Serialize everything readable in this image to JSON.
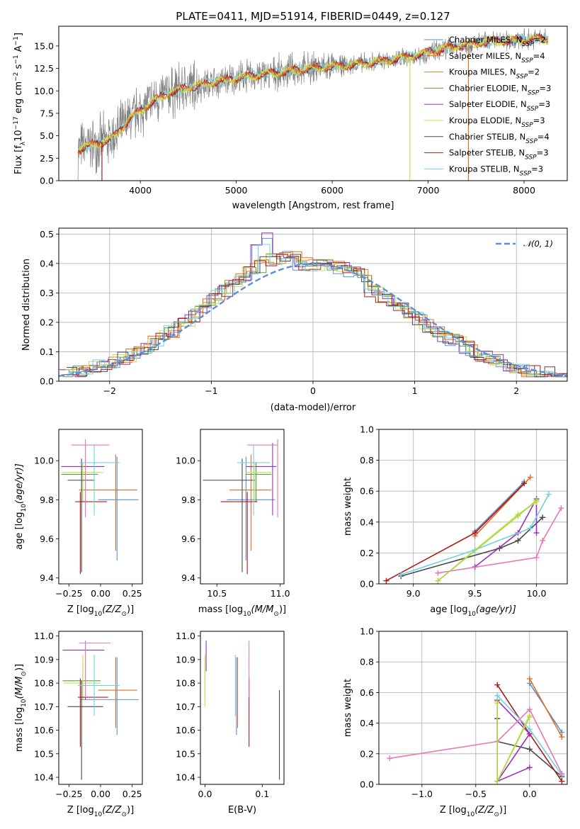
{
  "colors": {
    "Chabrier MILES": "#5b8fd9",
    "Salpeter MILES": "#e07020",
    "Kroupa MILES": "#d08820",
    "Chabrier ELODIE": "#5a9a40",
    "Salpeter ELODIE": "#9a30b8",
    "Kroupa ELODIE": "#c8e050",
    "Chabrier STELIB": "#484848",
    "Salpeter STELIB": "#b01818",
    "Kroupa STELIB": "#70d0e0",
    "data": "#808080",
    "gauss": "#5b8fd9",
    "pink": "#e878b8",
    "green2": "#a8d840",
    "orange2": "#e88020"
  },
  "chart_data": [
    {
      "id": "spectrum",
      "type": "line",
      "title": "PLATE=0411, MJD=51914, FIBERID=0449, z=0.127",
      "xlabel": "wavelength [Angstrom, rest frame]",
      "ylabel_main": "Flux [f",
      "ylabel_sub": "λ",
      "ylabel_rest": "10",
      "ylabel_exp": "−17",
      "ylabel_tail": " erg cm",
      "ylabel_tail_exp": "−2",
      "ylabel_tail2": " s",
      "ylabel_tail2_exp": "−1",
      "ylabel_tail3": " A",
      "ylabel_tail3_exp": "−1",
      "ylabel_end": "]",
      "xlim": [
        3150,
        8450
      ],
      "ylim": [
        0,
        17.2
      ],
      "xticks": [
        "4000",
        "5000",
        "6000",
        "7000",
        "8000"
      ],
      "yticks": [
        "0.0",
        "2.5",
        "5.0",
        "7.5",
        "10.0",
        "12.5",
        "15.0"
      ],
      "trend_x": [
        3350,
        3500,
        3700,
        3900,
        4100,
        4300,
        4500,
        4800,
        5100,
        5400,
        5700,
        6000,
        6300,
        6600,
        6900,
        7200,
        7500,
        7800,
        8100
      ],
      "trend_y": [
        3.5,
        4.0,
        4.6,
        7.0,
        8.6,
        9.8,
        10.4,
        11.0,
        11.6,
        12.0,
        12.4,
        12.7,
        13.0,
        13.4,
        14.0,
        14.8,
        15.3,
        15.6,
        15.8
      ],
      "legend": [
        {
          "label": "Chabrier MILES, N",
          "sub": "SSP",
          "suffix": "=2",
          "key": "Chabrier MILES"
        },
        {
          "label": "Salpeter MILES, N",
          "sub": "SSP",
          "suffix": "=4",
          "key": "Salpeter MILES"
        },
        {
          "label": "Kroupa MILES, N",
          "sub": "SSP",
          "suffix": "=2",
          "key": "Kroupa MILES"
        },
        {
          "label": "Chabrier ELODIE, N",
          "sub": "SSP",
          "suffix": "=3",
          "key": "Chabrier ELODIE"
        },
        {
          "label": "Salpeter ELODIE, N",
          "sub": "SSP",
          "suffix": "=3",
          "key": "Salpeter ELODIE"
        },
        {
          "label": "Kroupa ELODIE, N",
          "sub": "SSP",
          "suffix": "=3",
          "key": "Kroupa ELODIE"
        },
        {
          "label": "Chabrier STELIB, N",
          "sub": "SSP",
          "suffix": "=4",
          "key": "Chabrier STELIB"
        },
        {
          "label": "Salpeter STELIB, N",
          "sub": "SSP",
          "suffix": "=3",
          "key": "Salpeter STELIB"
        },
        {
          "label": "Kroupa STELIB, N",
          "sub": "SSP",
          "suffix": "=3",
          "key": "Kroupa STELIB"
        }
      ]
    },
    {
      "id": "residuals",
      "type": "histogram",
      "xlabel": "(data-model)/error",
      "ylabel": "Normed distribution",
      "xlim": [
        -2.5,
        2.5
      ],
      "ylim": [
        0,
        0.52
      ],
      "xticks": [
        "−2",
        "−1",
        "0",
        "1",
        "2"
      ],
      "yticks": [
        "0.0",
        "0.1",
        "0.2",
        "0.3",
        "0.4",
        "0.5"
      ],
      "grid": true,
      "legend_label": "𝒩(0, 1)",
      "legend_position": "top-right"
    },
    {
      "id": "age-vs-Z",
      "type": "errorbar",
      "xlabel": "Z [log",
      "xlabel_sub": "10",
      "xlabel_tail": "(Z/Z",
      "xlabel_tail_sub": "⊙",
      "xlabel_end": ")]",
      "ylabel": "age  [log",
      "ylabel_sub": "10",
      "ylabel_tail": "(age/yr)]",
      "xlim": [
        -0.33,
        0.33
      ],
      "ylim": [
        9.37,
        10.16
      ],
      "xticks": [
        "−0.25",
        "0.00",
        "0.25"
      ],
      "yticks": [
        "9.4",
        "9.6",
        "9.8",
        "10.0"
      ],
      "points": [
        {
          "c": "Chabrier MILES",
          "x": 0.13,
          "y": 9.8,
          "xe": [
            -0.02,
            0.3
          ],
          "ye": [
            9.49,
            10.02
          ]
        },
        {
          "c": "Salpeter MILES",
          "x": 0.12,
          "y": 9.85,
          "xe": [
            -0.17,
            0.29
          ],
          "ye": [
            9.54,
            10.03
          ]
        },
        {
          "c": "Chabrier ELODIE",
          "x": -0.14,
          "y": 9.93,
          "xe": [
            -0.31,
            -0.02
          ],
          "ye": [
            9.79,
            9.99
          ]
        },
        {
          "c": "Salpeter ELODIE",
          "x": -0.12,
          "y": 9.97,
          "xe": [
            -0.31,
            0.03
          ],
          "ye": [
            9.72,
            10.09
          ]
        },
        {
          "c": "Kroupa ELODIE",
          "x": -0.14,
          "y": 9.94,
          "xe": [
            -0.3,
            0.02
          ],
          "ye": [
            9.79,
            9.99
          ]
        },
        {
          "c": "Chabrier STELIB",
          "x": -0.15,
          "y": 9.9,
          "xe": [
            -0.26,
            -0.05
          ],
          "ye": [
            9.43,
            10.01
          ]
        },
        {
          "c": "Salpeter STELIB",
          "x": -0.16,
          "y": 9.79,
          "xe": [
            -0.2,
            0.05
          ],
          "ye": [
            9.42,
            9.84
          ]
        },
        {
          "c": "Kroupa STELIB",
          "x": -0.05,
          "y": 9.99,
          "xe": [
            -0.17,
            0.15
          ],
          "ye": [
            9.72,
            10.08
          ]
        },
        {
          "c": "pink",
          "x": -0.12,
          "y": 10.08,
          "xe": [
            -0.23,
            0.07
          ],
          "ye": [
            9.71,
            10.11
          ]
        }
      ]
    },
    {
      "id": "age-vs-mass",
      "type": "errorbar",
      "xlabel": "mass [log",
      "xlabel_sub": "10",
      "xlabel_tail": "(M/M",
      "xlabel_tail_sub": "⊙",
      "xlabel_end": ")]",
      "xlim": [
        10.37,
        11.03
      ],
      "ylim": [
        9.37,
        10.16
      ],
      "xticks": [
        "10.5",
        "11.0"
      ],
      "yticks": [
        "9.4",
        "9.6",
        "9.8",
        "10.0"
      ],
      "points": [
        {
          "c": "Chabrier MILES",
          "x": 10.73,
          "y": 9.8,
          "xe": [
            10.58,
            10.96
          ],
          "ye": [
            9.49,
            10.02
          ]
        },
        {
          "c": "Salpeter MILES",
          "x": 10.77,
          "y": 9.85,
          "xe": [
            10.6,
            10.93
          ],
          "ye": [
            9.54,
            10.03
          ]
        },
        {
          "c": "Chabrier ELODIE",
          "x": 10.81,
          "y": 9.93,
          "xe": [
            10.73,
            10.93
          ],
          "ye": [
            9.79,
            9.99
          ]
        },
        {
          "c": "Salpeter ELODIE",
          "x": 10.94,
          "y": 9.97,
          "xe": [
            10.73,
            10.97
          ],
          "ye": [
            9.72,
            10.09
          ]
        },
        {
          "c": "Kroupa ELODIE",
          "x": 10.8,
          "y": 9.94,
          "xe": [
            10.73,
            10.93
          ],
          "ye": [
            9.79,
            9.99
          ]
        },
        {
          "c": "Chabrier STELIB",
          "x": 10.7,
          "y": 9.9,
          "xe": [
            10.39,
            10.8
          ],
          "ye": [
            9.43,
            10.01
          ]
        },
        {
          "c": "Salpeter STELIB",
          "x": 10.74,
          "y": 9.79,
          "xe": [
            10.53,
            10.82
          ],
          "ye": [
            9.42,
            9.84
          ]
        },
        {
          "c": "Kroupa STELIB",
          "x": 10.79,
          "y": 9.99,
          "xe": [
            10.66,
            10.92
          ],
          "ye": [
            9.72,
            10.08
          ]
        },
        {
          "c": "pink",
          "x": 10.98,
          "y": 10.08,
          "xe": [
            10.74,
            10.98
          ],
          "ye": [
            9.71,
            10.11
          ]
        }
      ]
    },
    {
      "id": "mass-weight-vs-age",
      "type": "line",
      "xlabel": "age  [log",
      "xlabel_sub": "10",
      "xlabel_tail": "(age/yr)]",
      "ylabel": "mass weight",
      "xlim": [
        8.72,
        10.25
      ],
      "ylim": [
        0,
        1.0
      ],
      "xticks": [
        "9.0",
        "9.5",
        "10.0"
      ],
      "yticks": [
        "0.0",
        "0.2",
        "0.4",
        "0.6",
        "0.8",
        "1.0"
      ],
      "grid": true,
      "series": [
        {
          "c": "Chabrier MILES",
          "x": [
            9.5,
            9.9
          ],
          "y": [
            0.34,
            0.66
          ]
        },
        {
          "c": "Salpeter MILES",
          "x": [
            9.5,
            9.95
          ],
          "y": [
            0.31,
            0.69
          ]
        },
        {
          "c": "Salpeter STELIB",
          "x": [
            8.78,
            9.5,
            9.9
          ],
          "y": [
            0.02,
            0.33,
            0.65
          ]
        },
        {
          "c": "Chabrier STELIB",
          "x": [
            8.9,
            9.7,
            9.85,
            10.05
          ],
          "y": [
            0.05,
            0.23,
            0.28,
            0.43
          ]
        },
        {
          "c": "Salpeter ELODIE",
          "x": [
            9.5,
            9.85,
            10.0,
            10.0
          ],
          "y": [
            0.11,
            0.33,
            0.55,
            0.33
          ]
        },
        {
          "c": "Kroupa ELODIE",
          "x": [
            9.2,
            9.85,
            10.0
          ],
          "y": [
            0.02,
            0.45,
            0.53
          ]
        },
        {
          "c": "Kroupa STELIB",
          "x": [
            8.9,
            9.5,
            9.95,
            10.1
          ],
          "y": [
            0.06,
            0.22,
            0.36,
            0.58
          ]
        },
        {
          "c": "pink",
          "x": [
            9.2,
            10.0,
            10.05,
            10.2
          ],
          "y": [
            0.07,
            0.17,
            0.28,
            0.49
          ]
        },
        {
          "c": "green2",
          "x": [
            9.2,
            9.85,
            10.0
          ],
          "y": [
            0.02,
            0.44,
            0.54
          ]
        }
      ]
    },
    {
      "id": "mass-vs-Z",
      "type": "errorbar",
      "xlabel": "Z [log",
      "xlabel_sub": "10",
      "xlabel_tail": "(Z/Z",
      "xlabel_tail_sub": "⊙",
      "xlabel_end": ")]",
      "ylabel": "mass [log",
      "ylabel_sub": "10",
      "ylabel_tail": "(M/M",
      "ylabel_tail_sub": "⊙",
      "ylabel_end": ")]",
      "xlim": [
        -0.33,
        0.33
      ],
      "ylim": [
        10.37,
        11.02
      ],
      "xticks": [
        "−0.25",
        "0.00",
        "0.25"
      ],
      "yticks": [
        "10.4",
        "10.5",
        "10.6",
        "10.7",
        "10.8",
        "10.9",
        "11.0"
      ],
      "points": [
        {
          "c": "Chabrier MILES",
          "x": 0.13,
          "y": 10.73,
          "xe": [
            -0.16,
            0.3
          ],
          "ye": [
            10.58,
            10.91
          ]
        },
        {
          "c": "Salpeter MILES",
          "x": 0.12,
          "y": 10.77,
          "xe": [
            -0.02,
            0.29
          ],
          "ye": [
            10.61,
            10.91
          ]
        },
        {
          "c": "Chabrier ELODIE",
          "x": -0.14,
          "y": 10.81,
          "xe": [
            -0.3,
            -0.0
          ],
          "ye": [
            10.73,
            10.89
          ]
        },
        {
          "c": "Salpeter ELODIE",
          "x": -0.12,
          "y": 10.94,
          "xe": [
            -0.3,
            0.03
          ],
          "ye": [
            10.73,
            10.98
          ]
        },
        {
          "c": "Kroupa ELODIE",
          "x": -0.14,
          "y": 10.8,
          "xe": [
            -0.29,
            0.0
          ],
          "ye": [
            10.73,
            10.92
          ]
        },
        {
          "c": "Chabrier STELIB",
          "x": -0.15,
          "y": 10.7,
          "xe": [
            -0.26,
            0.02
          ],
          "ye": [
            10.39,
            10.81
          ]
        },
        {
          "c": "Salpeter STELIB",
          "x": -0.16,
          "y": 10.74,
          "xe": [
            -0.18,
            0.06
          ],
          "ye": [
            10.53,
            10.82
          ]
        },
        {
          "c": "Kroupa STELIB",
          "x": -0.05,
          "y": 10.79,
          "xe": [
            -0.18,
            0.15
          ],
          "ye": [
            10.66,
            10.92
          ]
        },
        {
          "c": "pink",
          "x": -0.12,
          "y": 10.97,
          "xe": [
            -0.17,
            0.08
          ],
          "ye": [
            10.74,
            10.98
          ]
        }
      ]
    },
    {
      "id": "mass-vs-EBV",
      "type": "errorbar",
      "xlabel": "E(B-V)",
      "xlim": [
        -0.008,
        0.138
      ],
      "ylim": [
        10.37,
        11.02
      ],
      "xticks": [
        "0.0",
        "0.1"
      ],
      "yticks": [
        "10.4",
        "10.5",
        "10.6",
        "10.7",
        "10.8",
        "10.9",
        "11.0"
      ],
      "points": [
        {
          "c": "Chabrier MILES",
          "x": 0.055,
          "y": 10.73,
          "xe": [
            0.055,
            0.055
          ],
          "ye": [
            10.58,
            10.91
          ]
        },
        {
          "c": "Salpeter MILES",
          "x": 0.057,
          "y": 10.77,
          "xe": [
            0.057,
            0.057
          ],
          "ye": [
            10.61,
            10.91
          ]
        },
        {
          "c": "Chabrier ELODIE",
          "x": 0.0,
          "y": 10.81,
          "xe": [
            0.0,
            0.0
          ],
          "ye": [
            10.73,
            10.89
          ]
        },
        {
          "c": "Salpeter ELODIE",
          "x": 0.002,
          "y": 10.94,
          "xe": [
            0.002,
            0.002
          ],
          "ye": [
            10.85,
            10.98
          ]
        },
        {
          "c": "Kroupa ELODIE",
          "x": 0.0,
          "y": 10.8,
          "xe": [
            0.0,
            0.0
          ],
          "ye": [
            10.7,
            10.92
          ]
        },
        {
          "c": "Chabrier STELIB",
          "x": 0.13,
          "y": 10.6,
          "xe": [
            0.13,
            0.13
          ],
          "ye": [
            10.39,
            10.77
          ]
        },
        {
          "c": "Salpeter STELIB",
          "x": 0.077,
          "y": 10.7,
          "xe": [
            0.077,
            0.077
          ],
          "ye": [
            10.53,
            10.82
          ]
        },
        {
          "c": "Kroupa STELIB",
          "x": 0.053,
          "y": 10.79,
          "xe": [
            0.053,
            0.053
          ],
          "ye": [
            10.66,
            10.92
          ]
        },
        {
          "c": "pink",
          "x": 0.077,
          "y": 10.9,
          "xe": [
            0.077,
            0.077
          ],
          "ye": [
            10.74,
            10.98
          ]
        }
      ]
    },
    {
      "id": "mass-weight-vs-Z",
      "type": "line",
      "xlabel": "Z [log",
      "xlabel_sub": "10",
      "xlabel_tail": "(Z/Z",
      "xlabel_tail_sub": "⊙",
      "xlabel_end": ")]",
      "ylabel": "mass weight",
      "xlim": [
        -1.4,
        0.35
      ],
      "ylim": [
        0,
        1.0
      ],
      "xticks": [
        "−1.0",
        "−0.5",
        "0.0"
      ],
      "yticks": [
        "0.0",
        "0.2",
        "0.4",
        "0.6",
        "0.8",
        "1.0"
      ],
      "grid": true,
      "series": [
        {
          "c": "Chabrier MILES",
          "x": [
            0.0,
            0.3
          ],
          "y": [
            0.66,
            0.34
          ]
        },
        {
          "c": "Salpeter MILES",
          "x": [
            0.0,
            0.3
          ],
          "y": [
            0.69,
            0.31
          ]
        },
        {
          "c": "Salpeter STELIB",
          "x": [
            -0.3,
            0.0,
            0.3
          ],
          "y": [
            0.65,
            0.33,
            0.02
          ]
        },
        {
          "c": "Chabrier STELIB",
          "x": [
            -0.3,
            -0.3,
            0.0,
            0.3
          ],
          "y": [
            0.43,
            0.28,
            0.23,
            0.05
          ]
        },
        {
          "c": "Salpeter ELODIE",
          "x": [
            -0.3,
            0.0,
            -0.3,
            0.0
          ],
          "y": [
            0.55,
            0.33,
            0.02,
            0.11
          ]
        },
        {
          "c": "Kroupa ELODIE",
          "x": [
            -0.3,
            -0.3,
            0.0
          ],
          "y": [
            0.53,
            0.02,
            0.45
          ]
        },
        {
          "c": "Kroupa STELIB",
          "x": [
            -0.3,
            0.0,
            0.3
          ],
          "y": [
            0.58,
            0.36,
            0.06
          ]
        },
        {
          "c": "pink",
          "x": [
            -1.3,
            -0.3,
            0.0,
            0.3
          ],
          "y": [
            0.17,
            0.28,
            0.49,
            0.07
          ]
        },
        {
          "c": "green2",
          "x": [
            -0.3,
            -0.3,
            0.0
          ],
          "y": [
            0.54,
            0.02,
            0.44
          ]
        }
      ]
    }
  ]
}
